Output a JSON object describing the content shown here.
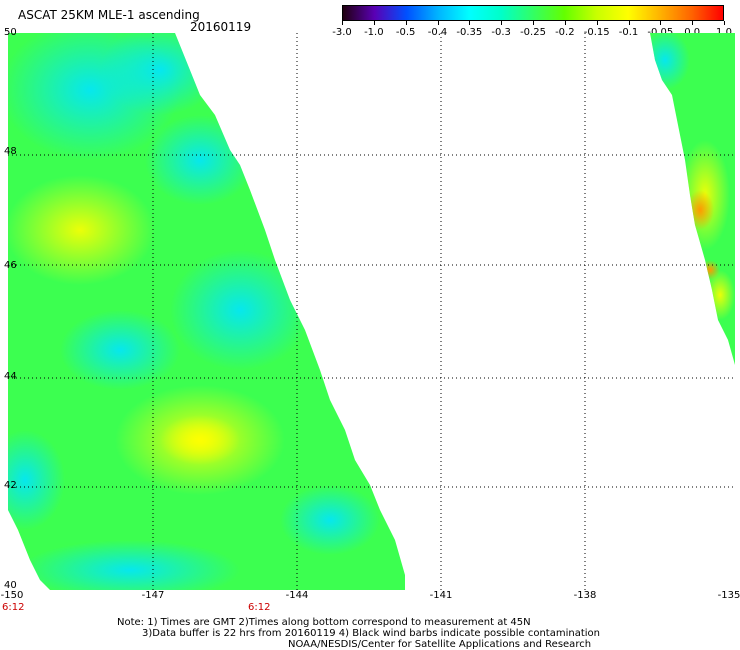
{
  "header": {
    "title": "ASCAT 25KM MLE-1 ascending",
    "date": "20160119"
  },
  "colorbar": {
    "labels": [
      "-3.0",
      "-1.0",
      "-0.5",
      "-0.4",
      "-0.35",
      "-0.3",
      "-0.25",
      "-0.2",
      "-0.15",
      "-0.1",
      "-0.05",
      "0.0",
      "1.0"
    ],
    "colors": [
      "#200010",
      "#5a00b4",
      "#0050ff",
      "#00b4ff",
      "#00ffff",
      "#00ffc8",
      "#32ff64",
      "#64ff00",
      "#c8ff00",
      "#ffff00",
      "#ffb400",
      "#ff6400",
      "#ff0000"
    ]
  },
  "map": {
    "lon_ticks": [
      "-150",
      "-147",
      "-144",
      "-141",
      "-138",
      "-135"
    ],
    "lat_ticks": [
      "50",
      "48",
      "46",
      "44",
      "42",
      "40"
    ],
    "lon_range": [
      -150,
      -135
    ],
    "lat_range": [
      40,
      50
    ],
    "gridlines": true
  },
  "time_labels": [
    {
      "text": "6:12",
      "lon": -150
    },
    {
      "text": "6:12",
      "lon": -145
    }
  ],
  "notes": [
    "Note: 1) Times are GMT 2)Times along bottom correspond to measurement at 45N",
    "3)Data buffer is 22 hrs from 20160119 4) Black wind barbs indicate possible contamination",
    "NOAA/NESDIS/Center for Satellite Applications and Research"
  ],
  "swaths": [
    {
      "name": "west-swath",
      "dominant": "green",
      "note": "cyan-green field with yellow maxima near 47N and 43N"
    },
    {
      "name": "east-swath",
      "dominant": "green",
      "note": "green-yellow field with orange pixels near 47N"
    }
  ]
}
